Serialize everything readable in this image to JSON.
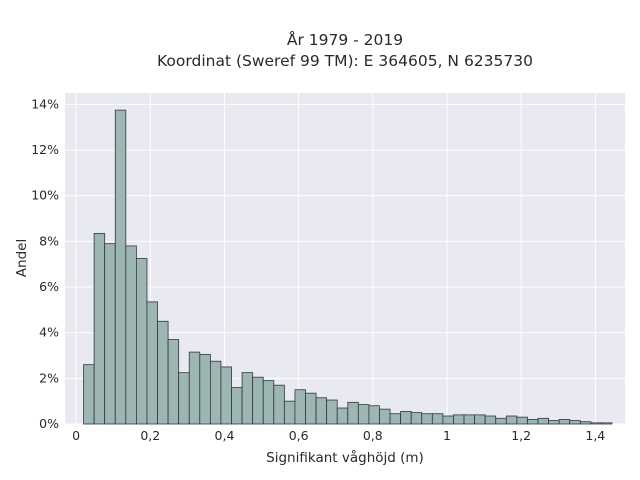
{
  "chart_data": {
    "type": "bar",
    "title": "År 1979 - 2019",
    "subtitle": "Koordinat (Sweref 99 TM): E 364605, N 6235730",
    "xlabel": "Signifikant våghöjd (m)",
    "ylabel": "Andel",
    "xlim": [
      -0.03,
      1.48
    ],
    "ylim": [
      0,
      14.5
    ],
    "x_ticks": [
      0,
      0.2,
      0.4,
      0.6,
      0.8,
      1.0,
      1.2,
      1.4
    ],
    "x_tick_labels": [
      "0",
      "0,2",
      "0,4",
      "0,6",
      "0,8",
      "1",
      "1,2",
      "1,4"
    ],
    "y_ticks": [
      0,
      2,
      4,
      6,
      8,
      10,
      12,
      14
    ],
    "y_tick_labels": [
      "0%",
      "2%",
      "4%",
      "6%",
      "8%",
      "10%",
      "12%",
      "14%"
    ],
    "grid": true,
    "legend": "none",
    "bin_width": 0.0285,
    "bin_start": 0.02,
    "values": [
      2.6,
      8.35,
      7.9,
      13.75,
      7.8,
      7.25,
      5.35,
      4.5,
      3.7,
      2.25,
      3.15,
      3.05,
      2.75,
      2.5,
      1.6,
      2.25,
      2.05,
      1.9,
      1.7,
      1.0,
      1.5,
      1.35,
      1.15,
      1.05,
      0.7,
      0.95,
      0.85,
      0.8,
      0.65,
      0.45,
      0.55,
      0.5,
      0.45,
      0.45,
      0.35,
      0.4,
      0.4,
      0.4,
      0.35,
      0.25,
      0.35,
      0.3,
      0.2,
      0.25,
      0.15,
      0.2,
      0.15,
      0.1,
      0.05,
      0.05
    ],
    "colors": {
      "bar_fill": "#9db5b3",
      "bar_stroke": "#2f3a38",
      "plot_bg": "#e9e9f1",
      "grid": "#ffffff",
      "text": "#2a2a2a"
    }
  }
}
